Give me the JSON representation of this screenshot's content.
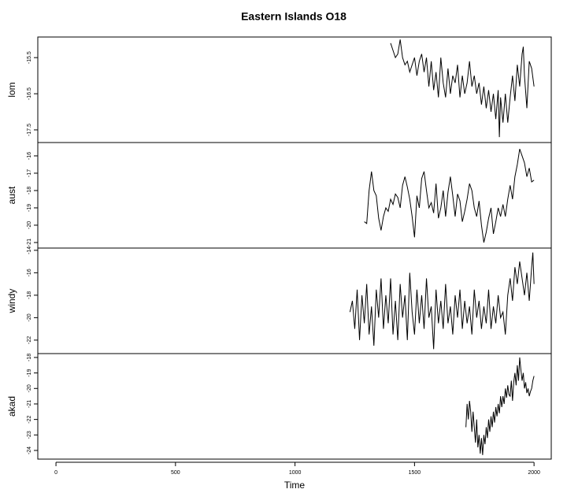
{
  "chart_data": {
    "type": "line",
    "title": "Eastern Islands O18",
    "xlabel": "Time",
    "xlim": [
      -76,
      2072
    ],
    "xticks": [
      0,
      500,
      1000,
      1500,
      2000
    ],
    "color": "#000000",
    "panels": [
      {
        "ylabel": "lom",
        "ylim": [
          -17.85,
          -14.93
        ],
        "yticks": [
          -15.5,
          -16.5,
          -17.5
        ],
        "x": [
          1400,
          1410,
          1420,
          1430,
          1440,
          1450,
          1460,
          1470,
          1480,
          1490,
          1500,
          1510,
          1520,
          1530,
          1540,
          1550,
          1560,
          1570,
          1580,
          1590,
          1600,
          1610,
          1620,
          1630,
          1640,
          1650,
          1660,
          1670,
          1680,
          1690,
          1700,
          1710,
          1720,
          1730,
          1740,
          1750,
          1760,
          1770,
          1780,
          1790,
          1800,
          1810,
          1820,
          1830,
          1840,
          1850,
          1855,
          1860,
          1870,
          1880,
          1890,
          1900,
          1910,
          1920,
          1930,
          1940,
          1950,
          1955,
          1960,
          1970,
          1980,
          1990,
          2000
        ],
        "values": [
          -15.1,
          -15.3,
          -15.5,
          -15.4,
          -15.0,
          -15.5,
          -15.7,
          -15.6,
          -15.9,
          -15.7,
          -15.5,
          -16.0,
          -15.6,
          -15.4,
          -15.9,
          -15.5,
          -16.3,
          -15.6,
          -16.4,
          -15.9,
          -16.6,
          -15.5,
          -16.2,
          -16.6,
          -15.8,
          -16.5,
          -16.0,
          -16.2,
          -15.7,
          -16.6,
          -16.0,
          -16.5,
          -16.2,
          -15.6,
          -16.3,
          -16.0,
          -16.5,
          -16.2,
          -16.8,
          -16.3,
          -16.9,
          -16.4,
          -17.0,
          -16.5,
          -17.2,
          -16.4,
          -17.7,
          -16.6,
          -17.3,
          -16.5,
          -17.3,
          -16.6,
          -16.0,
          -16.7,
          -15.7,
          -16.3,
          -15.4,
          -15.2,
          -16.0,
          -16.9,
          -15.6,
          -15.8,
          -16.3
        ]
      },
      {
        "ylabel": "aust",
        "ylim": [
          -21.32,
          -15.23
        ],
        "yticks": [
          -16,
          -17,
          -18,
          -19,
          -20,
          -21
        ],
        "x": [
          1290,
          1300,
          1310,
          1320,
          1330,
          1340,
          1350,
          1360,
          1370,
          1380,
          1390,
          1400,
          1410,
          1420,
          1430,
          1440,
          1450,
          1460,
          1470,
          1480,
          1490,
          1500,
          1510,
          1520,
          1530,
          1540,
          1550,
          1560,
          1570,
          1580,
          1590,
          1600,
          1610,
          1620,
          1630,
          1640,
          1650,
          1660,
          1670,
          1680,
          1690,
          1700,
          1710,
          1720,
          1730,
          1740,
          1750,
          1760,
          1770,
          1780,
          1790,
          1800,
          1810,
          1820,
          1830,
          1840,
          1850,
          1860,
          1870,
          1880,
          1890,
          1900,
          1910,
          1920,
          1930,
          1940,
          1950,
          1960,
          1970,
          1980,
          1990,
          2000
        ],
        "values": [
          -19.8,
          -19.9,
          -18.0,
          -16.9,
          -18.0,
          -18.3,
          -19.6,
          -20.3,
          -19.5,
          -19.0,
          -19.2,
          -18.5,
          -18.8,
          -18.2,
          -18.4,
          -19.0,
          -17.7,
          -17.2,
          -17.8,
          -18.5,
          -19.5,
          -20.7,
          -18.3,
          -19.0,
          -17.3,
          -16.9,
          -18.0,
          -19.0,
          -18.7,
          -19.3,
          -17.6,
          -19.6,
          -19.0,
          -18.0,
          -19.5,
          -18.1,
          -17.2,
          -18.3,
          -19.5,
          -18.2,
          -18.6,
          -19.8,
          -19.2,
          -18.5,
          -17.6,
          -18.0,
          -19.0,
          -19.5,
          -18.6,
          -20.0,
          -21.0,
          -20.4,
          -19.6,
          -19.0,
          -20.5,
          -19.8,
          -19.0,
          -19.5,
          -18.8,
          -19.5,
          -18.5,
          -17.7,
          -18.5,
          -17.2,
          -16.5,
          -15.6,
          -16.0,
          -16.4,
          -17.2,
          -16.7,
          -17.5,
          -17.4
        ]
      },
      {
        "ylabel": "windy",
        "ylim": [
          -23.2,
          -13.8
        ],
        "yticks": [
          -14,
          -16,
          -18,
          -20,
          -22
        ],
        "x": [
          1230,
          1240,
          1250,
          1260,
          1270,
          1280,
          1290,
          1300,
          1310,
          1320,
          1330,
          1340,
          1350,
          1360,
          1370,
          1380,
          1390,
          1400,
          1410,
          1420,
          1430,
          1440,
          1450,
          1460,
          1470,
          1480,
          1490,
          1500,
          1510,
          1520,
          1530,
          1540,
          1550,
          1560,
          1570,
          1580,
          1590,
          1600,
          1610,
          1620,
          1630,
          1640,
          1650,
          1660,
          1670,
          1680,
          1690,
          1700,
          1710,
          1720,
          1730,
          1740,
          1750,
          1760,
          1770,
          1780,
          1790,
          1800,
          1810,
          1820,
          1830,
          1840,
          1850,
          1860,
          1870,
          1880,
          1890,
          1900,
          1910,
          1920,
          1930,
          1940,
          1950,
          1960,
          1970,
          1980,
          1990,
          1995,
          2000
        ],
        "values": [
          -19.5,
          -18.5,
          -21.0,
          -17.5,
          -22.0,
          -18.0,
          -20.5,
          -17.0,
          -21.5,
          -19.0,
          -22.5,
          -17.5,
          -20.0,
          -16.5,
          -21.0,
          -18.0,
          -20.5,
          -16.5,
          -21.5,
          -18.5,
          -22.0,
          -17.0,
          -20.0,
          -18.0,
          -22.0,
          -16.0,
          -19.5,
          -21.5,
          -17.5,
          -20.5,
          -18.0,
          -21.0,
          -16.5,
          -20.0,
          -19.0,
          -22.8,
          -17.5,
          -20.5,
          -18.5,
          -21.0,
          -17.0,
          -20.5,
          -19.0,
          -21.5,
          -18.0,
          -20.0,
          -17.5,
          -21.0,
          -18.5,
          -20.5,
          -19.0,
          -21.5,
          -17.5,
          -20.0,
          -18.5,
          -21.0,
          -19.0,
          -20.5,
          -17.5,
          -21.0,
          -19.0,
          -20.5,
          -18.0,
          -20.0,
          -19.5,
          -21.5,
          -18.0,
          -16.5,
          -18.5,
          -15.5,
          -17.0,
          -15.0,
          -16.5,
          -18.0,
          -16.0,
          -18.5,
          -15.5,
          -14.2,
          -17.0
        ]
      },
      {
        "ylabel": "akad",
        "ylim": [
          -24.56,
          -17.75
        ],
        "yticks": [
          -18,
          -19,
          -20,
          -21,
          -22,
          -23,
          -24
        ],
        "x": [
          1715,
          1720,
          1725,
          1730,
          1735,
          1740,
          1745,
          1750,
          1755,
          1760,
          1765,
          1770,
          1775,
          1780,
          1785,
          1790,
          1795,
          1800,
          1805,
          1810,
          1815,
          1820,
          1825,
          1830,
          1835,
          1840,
          1845,
          1850,
          1855,
          1860,
          1865,
          1870,
          1875,
          1880,
          1885,
          1890,
          1895,
          1900,
          1905,
          1910,
          1915,
          1920,
          1925,
          1930,
          1935,
          1940,
          1945,
          1950,
          1955,
          1960,
          1965,
          1970,
          1975,
          1980,
          1985,
          1990,
          1995,
          2000
        ],
        "values": [
          -22.5,
          -21.0,
          -22.0,
          -20.8,
          -21.5,
          -22.8,
          -21.5,
          -22.5,
          -23.5,
          -22.0,
          -23.8,
          -23.0,
          -24.2,
          -23.2,
          -24.3,
          -23.0,
          -23.6,
          -22.5,
          -23.2,
          -22.0,
          -22.8,
          -21.8,
          -22.5,
          -21.5,
          -22.2,
          -21.2,
          -21.8,
          -21.0,
          -21.6,
          -20.5,
          -21.2,
          -20.5,
          -21.0,
          -20.0,
          -20.6,
          -19.8,
          -20.4,
          -20.5,
          -19.5,
          -20.8,
          -19.6,
          -19.0,
          -19.8,
          -18.5,
          -19.5,
          -18.0,
          -18.8,
          -19.5,
          -19.0,
          -20.0,
          -19.6,
          -20.3,
          -20.0,
          -20.5,
          -20.2,
          -20.0,
          -19.5,
          -19.2
        ]
      }
    ]
  }
}
